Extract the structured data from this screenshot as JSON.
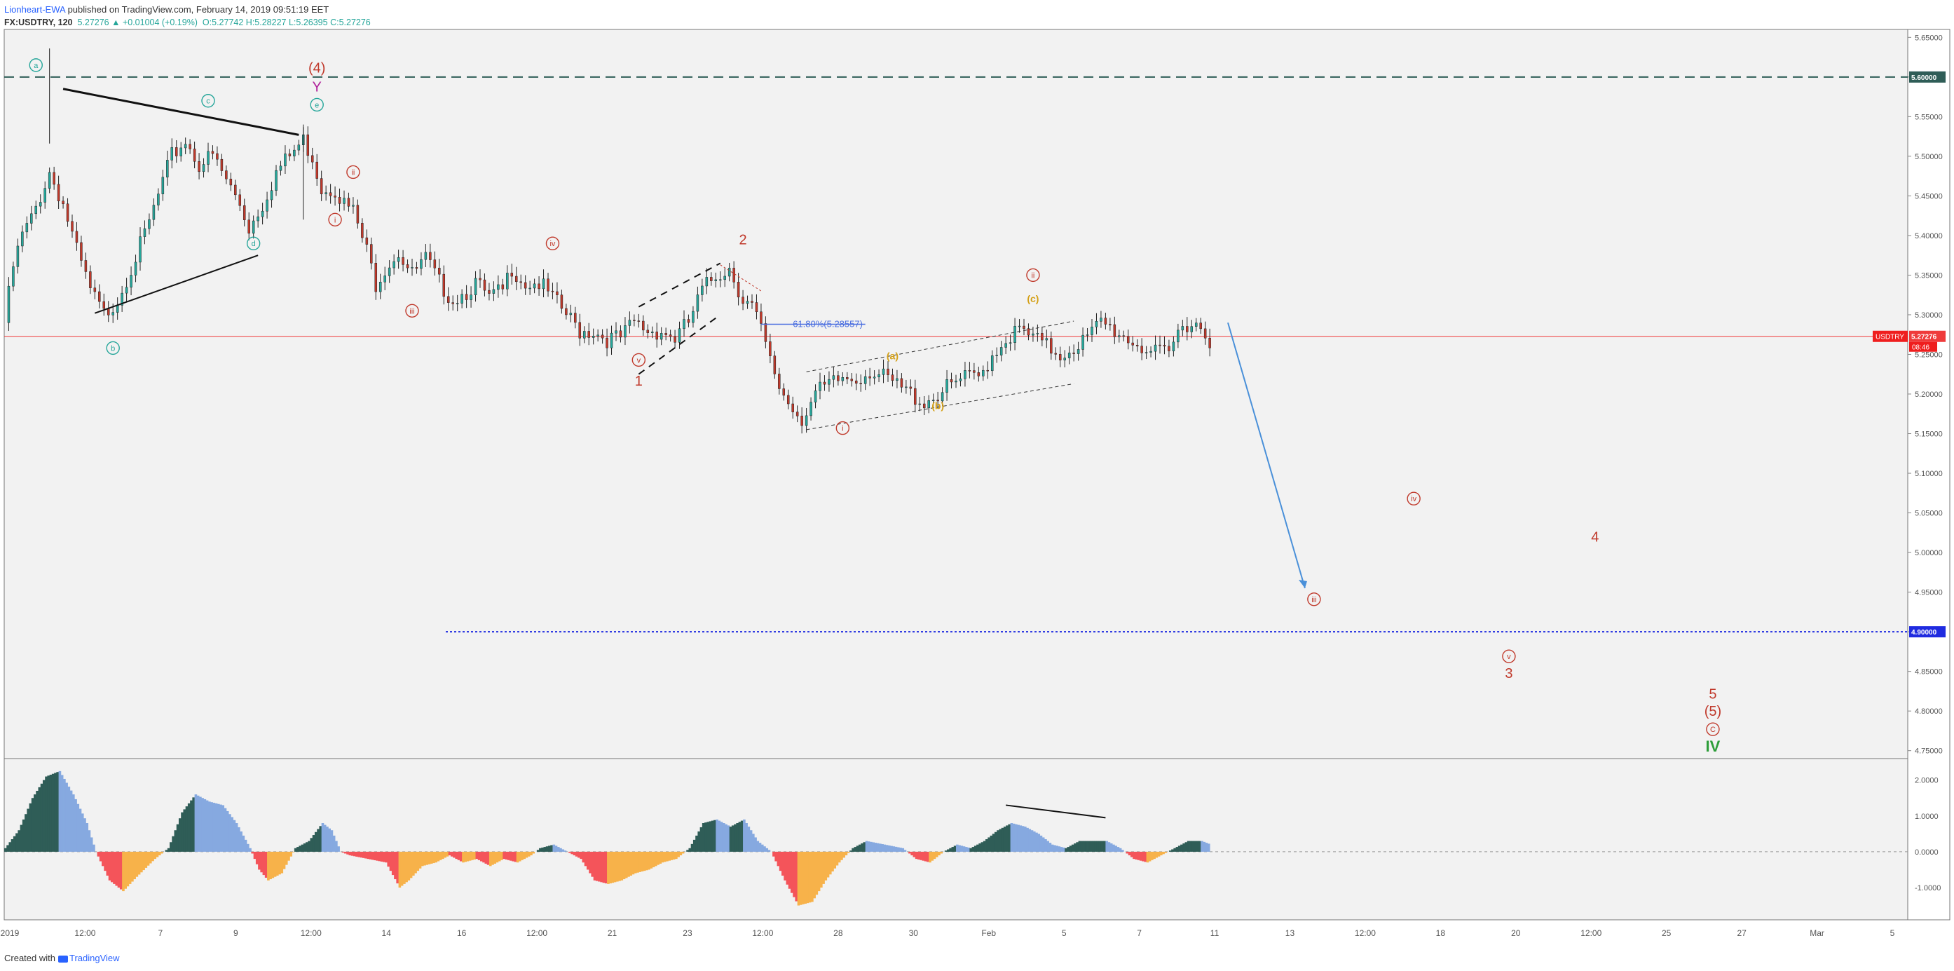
{
  "header": {
    "author": "Lionheart-EWA",
    "published": "published on TradingView.com, February 14, 2019 09:51:19 EET",
    "symbol": "FX:USDTRY, 120",
    "last_change": "5.27276 ▲ +0.01004 (+0.19%)",
    "open": "O:5.27742",
    "high": "H:5.28227",
    "low": "L:5.26395",
    "close": "C:5.27276"
  },
  "footer": {
    "created_with": "Created with",
    "brand": "TradingView"
  },
  "colors": {
    "bull": "#26a69a",
    "bear": "#c0392b",
    "wave_red": "#c0392b",
    "wave_teal": "#26a69a",
    "wave_orange": "#d4a017",
    "target_arrow": "#4a90d9",
    "osc_dark_green": "#2f5d57",
    "osc_blue": "#86a9e0",
    "osc_red": "#f4545a",
    "osc_orange": "#f7b24a",
    "green_iv": "#2e9e3a"
  },
  "chart_data": [
    {
      "type": "candlestick",
      "title": "",
      "symbol": "USDTRY",
      "x_tick_labels": [
        "2019",
        "12:00",
        "7",
        "9",
        "12:00",
        "14",
        "16",
        "12:00",
        "21",
        "23",
        "12:00",
        "28",
        "30",
        "Feb",
        "5",
        "7",
        "11",
        "13",
        "12:00",
        "18",
        "20",
        "12:00",
        "25",
        "27",
        "Mar",
        "5"
      ],
      "y_tick_labels": [
        "5.65000",
        "5.60000",
        "5.55000",
        "5.50000",
        "5.45000",
        "5.40000",
        "5.35000",
        "5.30000",
        "5.25000",
        "5.20000",
        "5.15000",
        "5.10000",
        "5.05000",
        "5.00000",
        "4.95000",
        "4.90000",
        "4.85000",
        "4.80000",
        "4.75000"
      ],
      "ylim": [
        4.74,
        5.66
      ],
      "price_path": [
        [
          0,
          5.29
        ],
        [
          2,
          5.36
        ],
        [
          4,
          5.4
        ],
        [
          6,
          5.42
        ],
        [
          8,
          5.45
        ],
        [
          10,
          5.48
        ],
        [
          13,
          5.44
        ],
        [
          16,
          5.38
        ],
        [
          19,
          5.33
        ],
        [
          22,
          5.3
        ],
        [
          25,
          5.32
        ],
        [
          28,
          5.36
        ],
        [
          31,
          5.4
        ],
        [
          34,
          5.45
        ],
        [
          37,
          5.5
        ],
        [
          40,
          5.52
        ],
        [
          43,
          5.49
        ],
        [
          46,
          5.5
        ],
        [
          49,
          5.47
        ],
        [
          52,
          5.44
        ],
        [
          54,
          5.41
        ],
        [
          57,
          5.44
        ],
        [
          60,
          5.48
        ],
        [
          63,
          5.5
        ],
        [
          66,
          5.52
        ],
        [
          68,
          5.5
        ],
        [
          70,
          5.46
        ],
        [
          73,
          5.46
        ],
        [
          75,
          5.44
        ],
        [
          77,
          5.43
        ],
        [
          80,
          5.38
        ],
        [
          82,
          5.34
        ],
        [
          84,
          5.36
        ],
        [
          87,
          5.38
        ],
        [
          90,
          5.35
        ],
        [
          93,
          5.37
        ],
        [
          96,
          5.34
        ],
        [
          99,
          5.32
        ],
        [
          102,
          5.33
        ],
        [
          104,
          5.34
        ],
        [
          107,
          5.32
        ],
        [
          110,
          5.33
        ],
        [
          112,
          5.36
        ],
        [
          115,
          5.34
        ],
        [
          118,
          5.34
        ],
        [
          121,
          5.32
        ],
        [
          124,
          5.3
        ],
        [
          127,
          5.28
        ],
        [
          130,
          5.28
        ],
        [
          133,
          5.27
        ],
        [
          136,
          5.27
        ],
        [
          139,
          5.29
        ],
        [
          142,
          5.28
        ],
        [
          145,
          5.28
        ],
        [
          148,
          5.27
        ],
        [
          151,
          5.29
        ],
        [
          154,
          5.33
        ],
        [
          157,
          5.35
        ],
        [
          160,
          5.36
        ],
        [
          163,
          5.32
        ],
        [
          165,
          5.31
        ],
        [
          167,
          5.28
        ],
        [
          169,
          5.24
        ],
        [
          171,
          5.21
        ],
        [
          173,
          5.19
        ],
        [
          176,
          5.17
        ],
        [
          179,
          5.2
        ],
        [
          182,
          5.21
        ],
        [
          185,
          5.22
        ],
        [
          188,
          5.22
        ],
        [
          191,
          5.23
        ],
        [
          194,
          5.22
        ],
        [
          197,
          5.21
        ],
        [
          200,
          5.2
        ],
        [
          203,
          5.19
        ],
        [
          206,
          5.2
        ],
        [
          209,
          5.21
        ],
        [
          212,
          5.22
        ],
        [
          215,
          5.22
        ],
        [
          218,
          5.25
        ],
        [
          221,
          5.27
        ],
        [
          224,
          5.28
        ],
        [
          227,
          5.27
        ],
        [
          230,
          5.26
        ],
        [
          233,
          5.25
        ],
        [
          236,
          5.26
        ],
        [
          239,
          5.27
        ],
        [
          242,
          5.29
        ],
        [
          245,
          5.28
        ],
        [
          248,
          5.27
        ],
        [
          251,
          5.26
        ],
        [
          254,
          5.25
        ],
        [
          257,
          5.25
        ],
        [
          260,
          5.29
        ],
        [
          263,
          5.29
        ],
        [
          266,
          5.27
        ]
      ],
      "highs": [
        {
          "label": "swing high a",
          "value": 5.636
        },
        {
          "label": "swing high e",
          "value": 5.54
        }
      ],
      "horizontal_levels": [
        {
          "value": 5.6,
          "label": "5.60000",
          "style": "dashed",
          "color": "#2f5d57"
        },
        {
          "value": 4.9,
          "label": "4.90000",
          "style": "dotted",
          "color": "#1f2be0"
        },
        {
          "value": 5.27276,
          "label": "5.27276",
          "style": "solid",
          "color": "#ef3b3b"
        }
      ],
      "price_badge": {
        "symbol": "USDTRY",
        "price": "5.27276",
        "countdown": "08:46"
      },
      "fib": {
        "label": "61.80%(5.28557)",
        "value": 5.28557
      },
      "projection": {
        "from_price": 5.29,
        "to_price": 4.955
      },
      "annotations": [
        {
          "text": "a",
          "style": "circle",
          "color": "teal",
          "price": 5.615,
          "bar": 7
        },
        {
          "text": "(4)",
          "style": "plain",
          "color": "red",
          "price": 5.612,
          "bar": 69
        },
        {
          "text": "Y",
          "style": "plain",
          "color": "magenta",
          "price": 5.588,
          "bar": 69
        },
        {
          "text": "e",
          "style": "circle",
          "color": "teal",
          "price": 5.565,
          "bar": 69
        },
        {
          "text": "c",
          "style": "circle",
          "color": "teal",
          "price": 5.57,
          "bar": 45
        },
        {
          "text": "ii",
          "style": "circle",
          "color": "red",
          "price": 5.48,
          "bar": 77
        },
        {
          "text": "i",
          "style": "circle",
          "color": "red",
          "price": 5.42,
          "bar": 73
        },
        {
          "text": "d",
          "style": "circle",
          "color": "teal",
          "price": 5.39,
          "bar": 55
        },
        {
          "text": "b",
          "style": "circle",
          "color": "teal",
          "price": 5.258,
          "bar": 24
        },
        {
          "text": "iv",
          "style": "circle",
          "color": "red",
          "price": 5.39,
          "bar": 121
        },
        {
          "text": "iii",
          "style": "circle",
          "color": "red",
          "price": 5.305,
          "bar": 90
        },
        {
          "text": "2",
          "style": "plain",
          "color": "red",
          "price": 5.395,
          "bar": 163
        },
        {
          "text": "v",
          "style": "circle",
          "color": "red",
          "price": 5.243,
          "bar": 140
        },
        {
          "text": "1",
          "style": "plain",
          "color": "red",
          "price": 5.217,
          "bar": 140
        },
        {
          "text": "ii",
          "style": "circle",
          "color": "red",
          "price": 5.35,
          "bar": 227
        },
        {
          "text": "(c)",
          "style": "plain",
          "color": "orange",
          "price": 5.322,
          "bar": 227
        },
        {
          "text": "(a)",
          "style": "plain",
          "color": "orange",
          "price": 5.25,
          "bar": 196
        },
        {
          "text": "(b)",
          "style": "plain",
          "color": "orange",
          "price": 5.187,
          "bar": 206
        },
        {
          "text": "i",
          "style": "circle",
          "color": "red",
          "price": 5.157,
          "bar": 185
        },
        {
          "text": "iv",
          "style": "circle",
          "color": "red",
          "price": 5.068,
          "bar": 311
        },
        {
          "text": "4",
          "style": "plain",
          "color": "red",
          "price": 5.02,
          "bar": 351
        },
        {
          "text": "iii",
          "style": "circle",
          "color": "red",
          "price": 4.941,
          "bar": 289
        },
        {
          "text": "v",
          "style": "circle",
          "color": "red",
          "price": 4.869,
          "bar": 332
        },
        {
          "text": "3",
          "style": "plain",
          "color": "red",
          "price": 4.848,
          "bar": 332
        },
        {
          "text": "5",
          "style": "plain",
          "color": "red",
          "price": 4.822,
          "bar": 377
        },
        {
          "text": "(5)",
          "style": "plain",
          "color": "red",
          "price": 4.8,
          "bar": 377
        },
        {
          "text": "C",
          "style": "circle",
          "color": "red",
          "price": 4.777,
          "bar": 377
        },
        {
          "text": "IV",
          "style": "plain",
          "color": "green",
          "price": 4.755,
          "bar": 377
        }
      ]
    },
    {
      "type": "area",
      "title": "",
      "name": "",
      "y_tick_labels": [
        "2.0000",
        "1.0000",
        "0.0000",
        "-1.0000"
      ],
      "ylim": [
        -1.9,
        2.6
      ],
      "values": [
        [
          0,
          0.1
        ],
        [
          3,
          0.6
        ],
        [
          6,
          1.5
        ],
        [
          9,
          2.1
        ],
        [
          12,
          2.25
        ],
        [
          15,
          1.6
        ],
        [
          18,
          0.8
        ],
        [
          20,
          0
        ],
        [
          23,
          -0.8
        ],
        [
          26,
          -1.1
        ],
        [
          29,
          -0.7
        ],
        [
          33,
          -0.2
        ],
        [
          36,
          0.1
        ],
        [
          39,
          1.1
        ],
        [
          42,
          1.6
        ],
        [
          45,
          1.4
        ],
        [
          48,
          1.3
        ],
        [
          51,
          0.8
        ],
        [
          54,
          0.1
        ],
        [
          56,
          -0.5
        ],
        [
          58,
          -0.8
        ],
        [
          61,
          -0.6
        ],
        [
          64,
          0.1
        ],
        [
          67,
          0.3
        ],
        [
          70,
          0.8
        ],
        [
          72,
          0.6
        ],
        [
          74,
          0
        ],
        [
          76,
          -0.1
        ],
        [
          80,
          -0.2
        ],
        [
          84,
          -0.3
        ],
        [
          87,
          -1.0
        ],
        [
          89,
          -0.8
        ],
        [
          92,
          -0.4
        ],
        [
          95,
          -0.3
        ],
        [
          98,
          -0.1
        ],
        [
          101,
          -0.3
        ],
        [
          104,
          -0.2
        ],
        [
          107,
          -0.4
        ],
        [
          110,
          -0.2
        ],
        [
          113,
          -0.3
        ],
        [
          116,
          -0.1
        ],
        [
          118,
          0.1
        ],
        [
          121,
          0.2
        ],
        [
          124,
          0
        ],
        [
          127,
          -0.2
        ],
        [
          130,
          -0.8
        ],
        [
          133,
          -0.9
        ],
        [
          136,
          -0.8
        ],
        [
          139,
          -0.6
        ],
        [
          142,
          -0.5
        ],
        [
          145,
          -0.3
        ],
        [
          148,
          -0.2
        ],
        [
          151,
          0.1
        ],
        [
          154,
          0.8
        ],
        [
          157,
          0.9
        ],
        [
          160,
          0.7
        ],
        [
          163,
          0.9
        ],
        [
          166,
          0.3
        ],
        [
          169,
          0
        ],
        [
          172,
          -0.8
        ],
        [
          175,
          -1.5
        ],
        [
          178,
          -1.4
        ],
        [
          181,
          -0.8
        ],
        [
          184,
          -0.3
        ],
        [
          187,
          0.1
        ],
        [
          190,
          0.3
        ],
        [
          194,
          0.2
        ],
        [
          198,
          0.1
        ],
        [
          201,
          -0.2
        ],
        [
          204,
          -0.3
        ],
        [
          207,
          0
        ],
        [
          210,
          0.2
        ],
        [
          213,
          0.1
        ],
        [
          216,
          0.3
        ],
        [
          219,
          0.6
        ],
        [
          222,
          0.8
        ],
        [
          225,
          0.7
        ],
        [
          228,
          0.5
        ],
        [
          231,
          0.2
        ],
        [
          234,
          0.1
        ],
        [
          237,
          0.3
        ],
        [
          240,
          0.3
        ],
        [
          243,
          0.3
        ],
        [
          246,
          0.1
        ],
        [
          249,
          -0.2
        ],
        [
          252,
          -0.3
        ],
        [
          255,
          -0.1
        ],
        [
          258,
          0.1
        ],
        [
          261,
          0.3
        ],
        [
          264,
          0.3
        ],
        [
          266,
          0.2
        ]
      ]
    }
  ]
}
